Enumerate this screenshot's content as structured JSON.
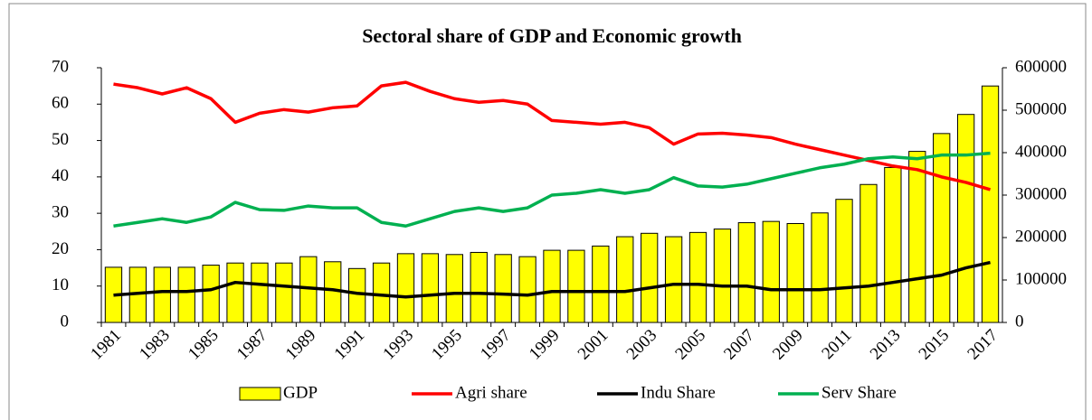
{
  "chart_data": {
    "type": "bar",
    "title": "Sectoral share of GDP and Economic growth",
    "categories": [
      "1981",
      null,
      "1983",
      null,
      "1985",
      null,
      "1987",
      null,
      "1989",
      null,
      "1991",
      null,
      "1993",
      null,
      "1995",
      null,
      "1997",
      null,
      "1999",
      null,
      "2001",
      null,
      "2003",
      null,
      "2005",
      null,
      "2007",
      null,
      "2009",
      null,
      "2011",
      null,
      "2013",
      null,
      "2015",
      null,
      "2017"
    ],
    "series": [
      {
        "name": "GDP",
        "type": "bar",
        "axis": "y2",
        "color": "#ffff00",
        "values": [
          130000,
          130000,
          130000,
          130000,
          135000,
          140000,
          140000,
          140000,
          155000,
          143000,
          127000,
          140000,
          162000,
          162000,
          160000,
          165000,
          160000,
          155000,
          170000,
          170000,
          180000,
          202000,
          210000,
          202000,
          212000,
          220000,
          235000,
          238000,
          233000,
          258000,
          290000,
          325000,
          365000,
          403000,
          445000,
          490000,
          557000
        ]
      },
      {
        "name": "Agri share",
        "type": "line",
        "color": "#ff0000",
        "values": [
          65.5,
          64.5,
          62.8,
          64.5,
          61.5,
          55,
          57.5,
          58.5,
          57.8,
          59,
          59.5,
          65,
          66,
          63.5,
          61.5,
          60.5,
          61,
          60,
          55.5,
          55,
          54.5,
          55,
          53.5,
          49,
          51.8,
          52,
          51.5,
          50.8,
          49,
          47.5,
          46,
          44.5,
          43,
          42,
          40,
          38.5,
          36.5
        ]
      },
      {
        "name": "Indu Share",
        "type": "line",
        "color": "#000000",
        "values": [
          7.5,
          8,
          8.5,
          8.5,
          9,
          11,
          10.5,
          10,
          9.5,
          9,
          8,
          7.5,
          7,
          7.5,
          8,
          8,
          7.8,
          7.5,
          8.5,
          8.5,
          8.5,
          8.5,
          9.5,
          10.5,
          10.5,
          10,
          10,
          9,
          9,
          9,
          9.5,
          10,
          11,
          12,
          13,
          15,
          16.5
        ]
      },
      {
        "name": "Serv Share",
        "type": "line",
        "color": "#00b050",
        "values": [
          26.5,
          27.5,
          28.5,
          27.5,
          29,
          33,
          31,
          30.8,
          32,
          31.5,
          31.5,
          27.5,
          26.5,
          28.5,
          30.5,
          31.5,
          30.5,
          31.5,
          35,
          35.5,
          36.5,
          35.5,
          36.5,
          39.8,
          37.5,
          37.2,
          38,
          39.5,
          41,
          42.5,
          43.5,
          45,
          45.5,
          45,
          46,
          46,
          46.5
        ]
      }
    ],
    "ylim": [
      0,
      70
    ],
    "yticks": [
      0,
      10,
      20,
      30,
      40,
      50,
      60,
      70
    ],
    "y2lim": [
      0,
      600000
    ],
    "y2ticks": [
      0,
      100000,
      200000,
      300000,
      400000,
      500000,
      600000
    ],
    "legend": "bottom"
  }
}
